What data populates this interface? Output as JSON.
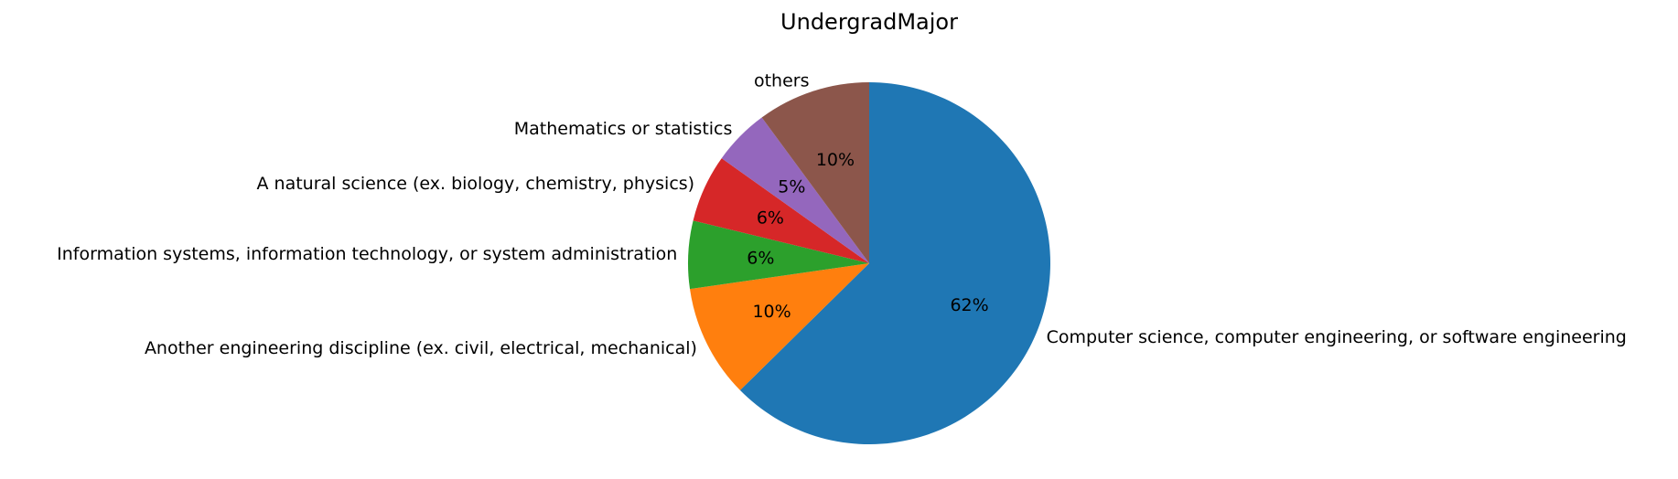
{
  "chart_data": {
    "type": "pie",
    "title": "UndergradMajor",
    "start_angle_deg": 90,
    "direction": "clockwise",
    "slices": [
      {
        "label": "Computer science, computer engineering, or software engineering",
        "value": 62,
        "pct_label": "62%",
        "color": "#1f77b4"
      },
      {
        "label": "Another engineering discipline (ex. civil, electrical, mechanical)",
        "value": 10,
        "pct_label": "10%",
        "color": "#ff7f0e"
      },
      {
        "label": "Information systems, information technology, or system administration",
        "value": 6,
        "pct_label": "6%",
        "color": "#2ca02c"
      },
      {
        "label": "A natural science (ex. biology, chemistry, physics)",
        "value": 6,
        "pct_label": "6%",
        "color": "#d62728"
      },
      {
        "label": "Mathematics or statistics",
        "value": 5,
        "pct_label": "5%",
        "color": "#9467bd"
      },
      {
        "label": "others",
        "value": 10,
        "pct_label": "10%",
        "color": "#8c564b"
      }
    ]
  }
}
